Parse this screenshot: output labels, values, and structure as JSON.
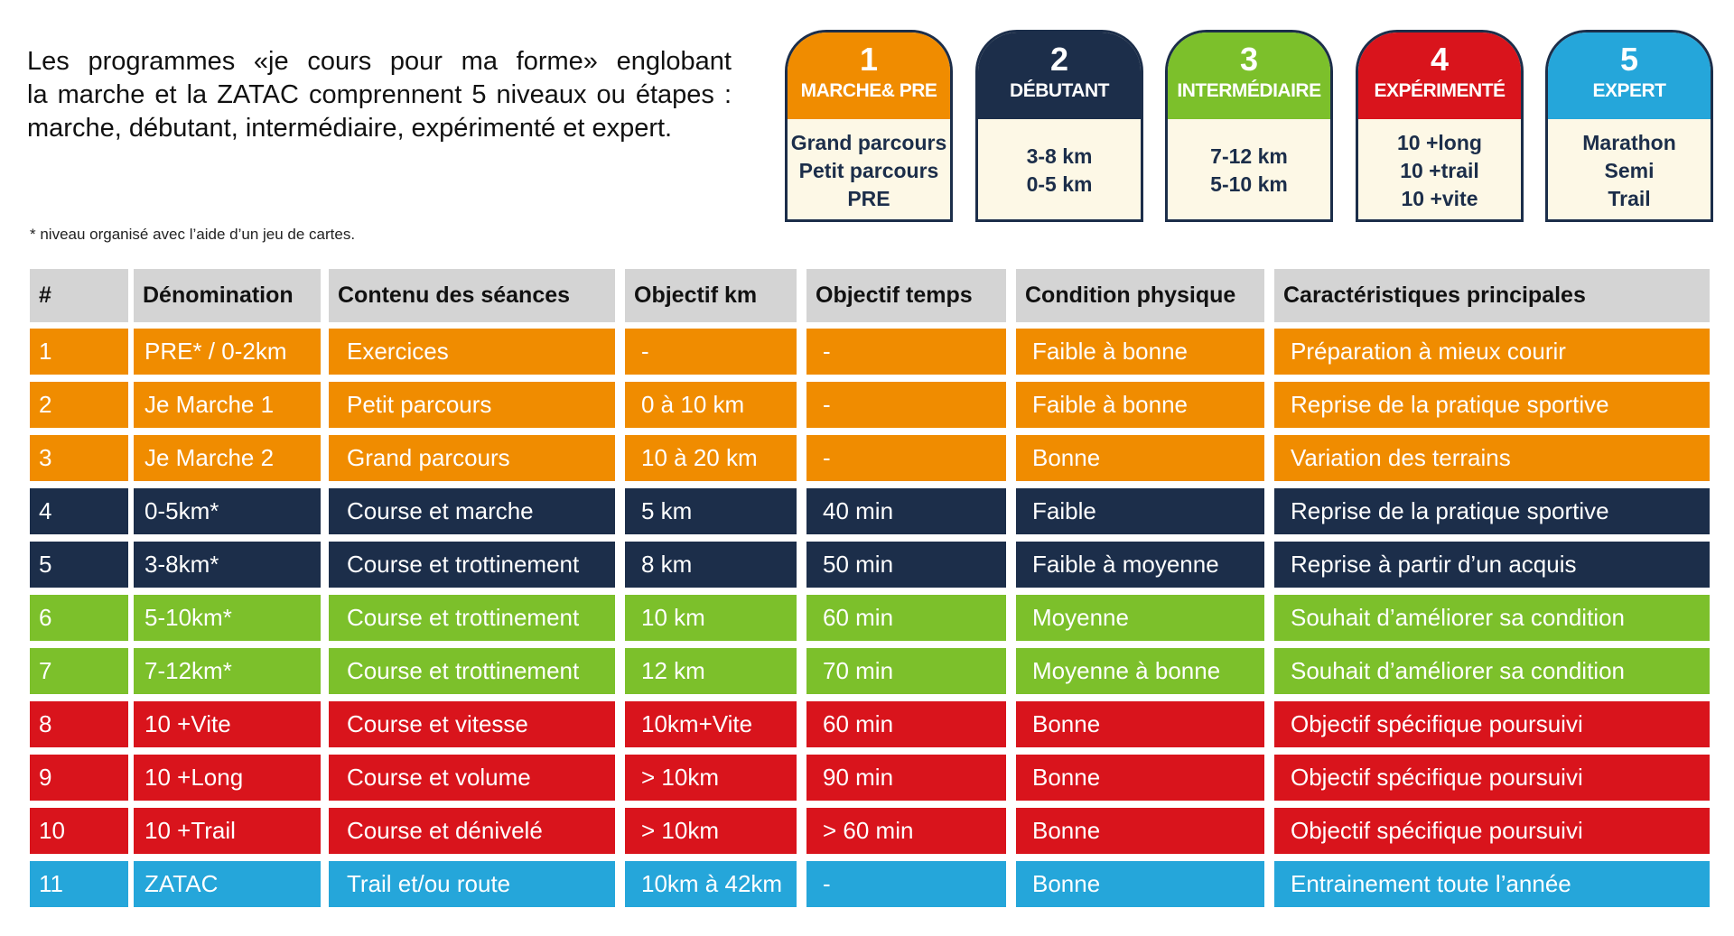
{
  "intro": [
    "Les programmes «je cours pour ma forme» englobant",
    "la marche et la ZATAC comprennent 5 niveaux ou étapes :",
    "marche, débutant, intermédiaire, expérimenté et expert."
  ],
  "levels": [
    {
      "number": "1",
      "name": "MARCHE& PRE",
      "color": "#f08c00",
      "lines": [
        "Grand parcours",
        "Petit parcours",
        "PRE"
      ]
    },
    {
      "number": "2",
      "name": "DÉBUTANT",
      "color": "#1c2e4a",
      "lines": [
        "3-8 km",
        "0-5 km"
      ]
    },
    {
      "number": "3",
      "name": "INTERMÉDIAIRE",
      "color": "#7cc02b",
      "lines": [
        "7-12 km",
        "5-10 km"
      ]
    },
    {
      "number": "4",
      "name": "EXPÉRIMENTÉ",
      "color": "#d9141c",
      "lines": [
        "10 +long",
        "10 +trail",
        "10 +vite"
      ]
    },
    {
      "number": "5",
      "name": "EXPERT",
      "color": "#25a6da",
      "lines": [
        "Marathon",
        "Semi",
        "Trail"
      ]
    }
  ],
  "footnote": "* niveau organisé avec l’aide d’un jeu de cartes.",
  "table": {
    "header": [
      "#",
      "Dénomination",
      "Contenu des séances",
      "Objectif km",
      "Objectif temps",
      "Condition physique",
      "Caractéristiques principales"
    ],
    "rows": [
      {
        "color": "#f08c00",
        "cells": [
          "1",
          "PRE* / 0-2km",
          "Exercices",
          "-",
          "-",
          "Faible à bonne",
          "Préparation à mieux courir"
        ]
      },
      {
        "color": "#f08c00",
        "cells": [
          "2",
          "Je Marche 1",
          "Petit parcours",
          "0 à 10 km",
          "-",
          "Faible à bonne",
          "Reprise de la pratique sportive"
        ]
      },
      {
        "color": "#f08c00",
        "cells": [
          "3",
          "Je Marche 2",
          "Grand parcours",
          "10 à 20 km",
          "-",
          "Bonne",
          "Variation des terrains"
        ]
      },
      {
        "color": "#1c2e4a",
        "cells": [
          "4",
          "0-5km*",
          "Course et marche",
          "5 km",
          "40 min",
          "Faible",
          "Reprise de la pratique sportive"
        ]
      },
      {
        "color": "#1c2e4a",
        "cells": [
          "5",
          "3-8km*",
          "Course et trottinement",
          "8 km",
          "50 min",
          "Faible à moyenne",
          "Reprise à partir d’un acquis"
        ]
      },
      {
        "color": "#7cc02b",
        "cells": [
          "6",
          "5-10km*",
          "Course et trottinement",
          "10 km",
          "60 min",
          "Moyenne",
          "Souhait d’améliorer sa condition"
        ]
      },
      {
        "color": "#7cc02b",
        "cells": [
          "7",
          "7-12km*",
          "Course et trottinement",
          "12 km",
          "70 min",
          "Moyenne à bonne",
          "Souhait d’améliorer sa condition"
        ]
      },
      {
        "color": "#d9141c",
        "cells": [
          "8",
          "10 +Vite",
          "Course et vitesse",
          "10km+Vite",
          "60 min",
          "Bonne",
          "Objectif spécifique poursuivi"
        ]
      },
      {
        "color": "#d9141c",
        "cells": [
          "9",
          "10 +Long",
          "Course et volume",
          "> 10km",
          "90 min",
          "Bonne",
          "Objectif spécifique poursuivi"
        ]
      },
      {
        "color": "#d9141c",
        "cells": [
          "10",
          "10 +Trail",
          "Course et dénivelé",
          "> 10km",
          "> 60 min",
          "Bonne",
          "Objectif spécifique poursuivi"
        ]
      },
      {
        "color": "#25a6da",
        "cells": [
          "11",
          "ZATAC",
          "Trail et/ou route",
          "10km à 42km",
          "-",
          "Bonne",
          "Entrainement toute l’année"
        ]
      }
    ]
  }
}
